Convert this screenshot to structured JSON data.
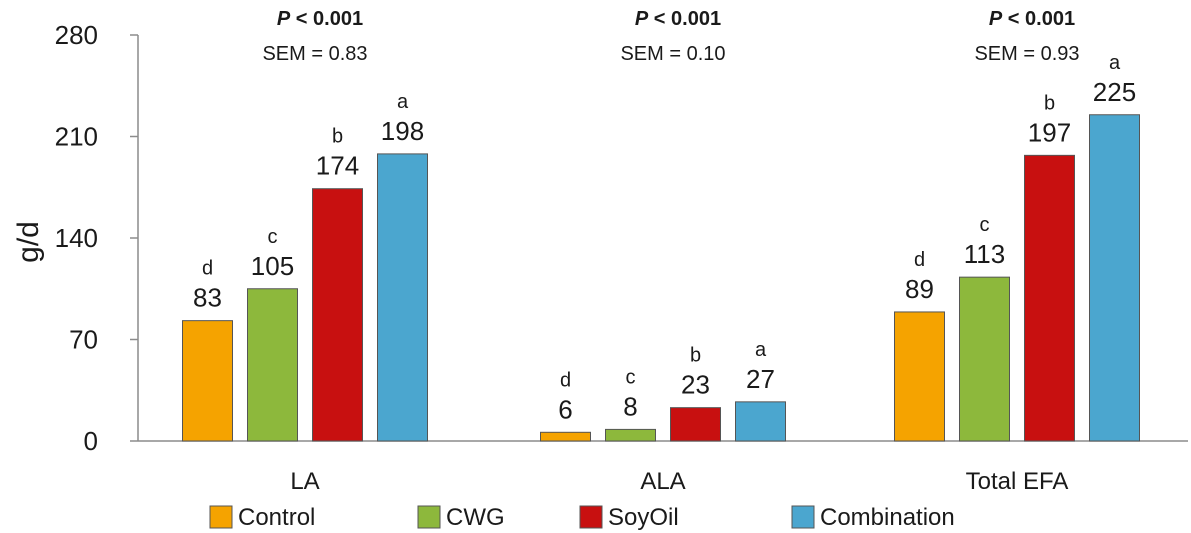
{
  "chart_data": {
    "type": "bar",
    "title": "",
    "xlabel": "",
    "ylabel": "g/d",
    "ylim": [
      0,
      280
    ],
    "yticks": [
      0,
      70,
      140,
      210,
      280
    ],
    "categories": [
      "LA",
      "ALA",
      "Total EFA"
    ],
    "series": [
      {
        "name": "Control",
        "color": "#F5A300",
        "values": [
          83,
          6,
          89
        ],
        "letters": [
          "d",
          "d",
          "d"
        ]
      },
      {
        "name": "CWG",
        "color": "#8DB83C",
        "values": [
          105,
          8,
          113
        ],
        "letters": [
          "c",
          "c",
          "c"
        ]
      },
      {
        "name": "SoyOil",
        "color": "#C81010",
        "values": [
          174,
          23,
          197
        ],
        "letters": [
          "b",
          "b",
          "b"
        ]
      },
      {
        "name": "Combination",
        "color": "#4BA6CF",
        "values": [
          198,
          27,
          225
        ],
        "letters": [
          "a",
          "a",
          "a"
        ]
      }
    ],
    "group_stats": [
      {
        "p": "P < 0.001",
        "sem": "SEM = 0.83"
      },
      {
        "p": "P < 0.001",
        "sem": "SEM = 0.10"
      },
      {
        "p": "P < 0.001",
        "sem": "SEM = 0.93"
      }
    ],
    "legend_position": "bottom",
    "grid": false
  }
}
